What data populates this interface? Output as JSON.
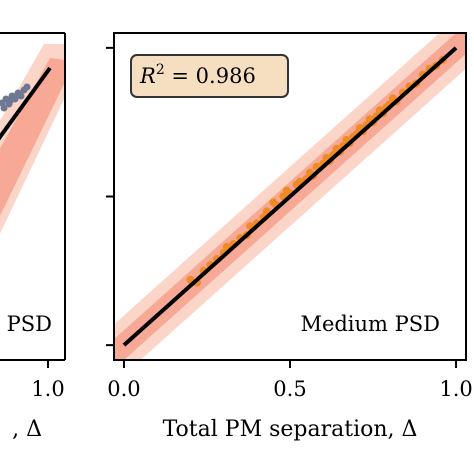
{
  "colors": {
    "band_outer": "#fbd5c8",
    "band_inner": "#f7a995",
    "points_main": "#f08a24",
    "points_prev": "#6f7893",
    "fit_line": "#000000",
    "stat_box_fill": "#f6dfc1",
    "stat_box_stroke": "#333333"
  },
  "left_panel": {
    "tick_label_right": "1.0",
    "axis_label_tail": ", Δ",
    "panel_label_tail": "PSD"
  },
  "chart_data": {
    "type": "scatter",
    "panel_label": "Medium PSD",
    "stat_annotation": "R² = 0.986",
    "stat_r2_symbol": "R",
    "stat_r2_sup": "2",
    "stat_r2_value": " = 0.986",
    "xlabel": "Total PM separation, Δ",
    "ylabel": "",
    "xlim": [
      -0.03,
      1.03
    ],
    "ylim": [
      -0.05,
      1.05
    ],
    "xticks": [
      0.0,
      0.5,
      1.0
    ],
    "xtick_labels": [
      "0.0",
      "0.5",
      "1.0"
    ],
    "yticks": [
      0.0,
      0.5,
      1.0
    ],
    "ytick_labels": [
      "",
      "",
      ""
    ],
    "grid": false,
    "fit_line": {
      "x": [
        0.0,
        1.0
      ],
      "y": [
        0.0,
        1.0
      ]
    },
    "band_outer_halfwidth": 0.1,
    "band_inner_halfwidth": 0.05,
    "series": [
      {
        "x": [
          0.2,
          0.22,
          0.24,
          0.26,
          0.28,
          0.3,
          0.31,
          0.33,
          0.35,
          0.37,
          0.38,
          0.4,
          0.42,
          0.43,
          0.45,
          0.46,
          0.48,
          0.49,
          0.5,
          0.52,
          0.53,
          0.55,
          0.56,
          0.57,
          0.58,
          0.6,
          0.61,
          0.62,
          0.63,
          0.64,
          0.65,
          0.66,
          0.67,
          0.68,
          0.69,
          0.7,
          0.71,
          0.72,
          0.73,
          0.74,
          0.75,
          0.76,
          0.77,
          0.78,
          0.79,
          0.8,
          0.81,
          0.82,
          0.84,
          0.86,
          0.88,
          0.9,
          0.92,
          0.94,
          0.96
        ],
        "y": [
          0.22,
          0.21,
          0.25,
          0.27,
          0.29,
          0.31,
          0.33,
          0.34,
          0.36,
          0.37,
          0.4,
          0.41,
          0.43,
          0.45,
          0.48,
          0.47,
          0.5,
          0.52,
          0.51,
          0.54,
          0.55,
          0.56,
          0.58,
          0.57,
          0.6,
          0.61,
          0.63,
          0.62,
          0.64,
          0.66,
          0.65,
          0.67,
          0.69,
          0.68,
          0.7,
          0.71,
          0.73,
          0.72,
          0.74,
          0.76,
          0.75,
          0.77,
          0.79,
          0.78,
          0.8,
          0.81,
          0.83,
          0.82,
          0.85,
          0.87,
          0.88,
          0.91,
          0.93,
          0.94,
          0.96
        ]
      }
    ]
  }
}
